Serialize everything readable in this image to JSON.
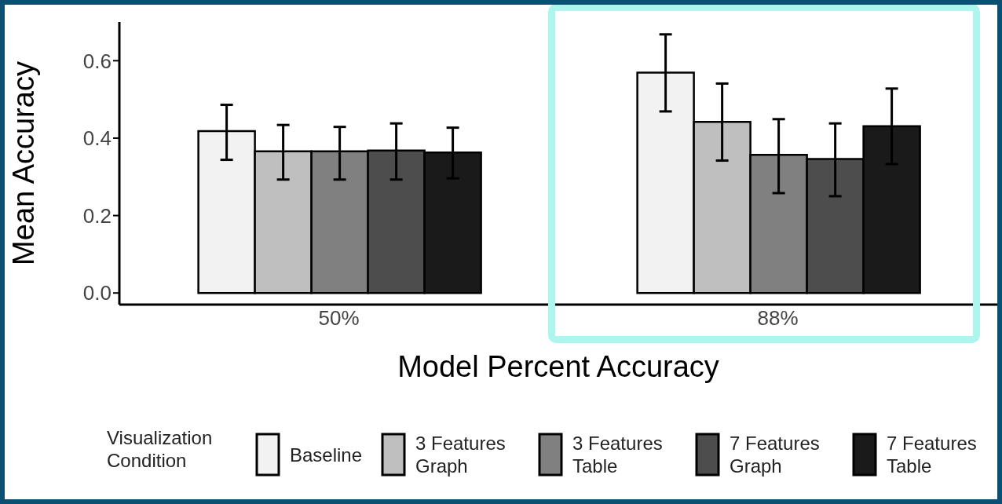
{
  "chart_data": {
    "type": "bar",
    "xlabel": "Model Percent Accuracy",
    "ylabel": "Mean Accuracy",
    "legend_title": "Visualization Condition",
    "categories": [
      "50%",
      "88%"
    ],
    "series": [
      {
        "name": "Baseline",
        "color": "#f2f2f2",
        "values": [
          0.418,
          0.569
        ],
        "errors": [
          [
            0.344,
            0.486
          ],
          [
            0.469,
            0.668
          ]
        ]
      },
      {
        "name": "3 Features Graph",
        "color": "#bfbfbf",
        "values": [
          0.366,
          0.442
        ],
        "errors": [
          [
            0.293,
            0.434
          ],
          [
            0.342,
            0.541
          ]
        ]
      },
      {
        "name": "3 Features Table",
        "color": "#808080",
        "values": [
          0.366,
          0.357
        ],
        "errors": [
          [
            0.293,
            0.429
          ],
          [
            0.258,
            0.449
          ]
        ]
      },
      {
        "name": "7 Features Graph",
        "color": "#4d4d4d",
        "values": [
          0.368,
          0.346
        ],
        "errors": [
          [
            0.293,
            0.438
          ],
          [
            0.25,
            0.438
          ]
        ]
      },
      {
        "name": "7 Features Table",
        "color": "#1a1a1a",
        "values": [
          0.363,
          0.431
        ],
        "errors": [
          [
            0.296,
            0.427
          ],
          [
            0.333,
            0.528
          ]
        ]
      }
    ],
    "ylim": [
      -0.03,
      0.7
    ],
    "yticks": [
      {
        "value": 0,
        "label": "0.0"
      },
      {
        "value": 0.2,
        "label": "0.2"
      },
      {
        "value": 0.4,
        "label": "0.4"
      },
      {
        "value": 0.6,
        "label": "0.6"
      }
    ],
    "grid": false,
    "legend": "bottom"
  }
}
